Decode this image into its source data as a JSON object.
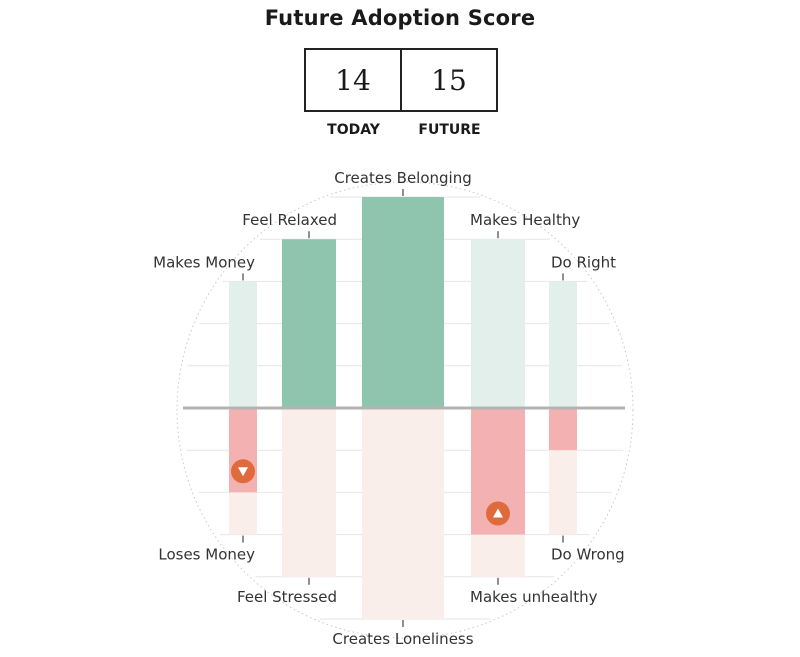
{
  "title": "Future Adoption Score",
  "scores": {
    "today": {
      "value": "14",
      "label": "TODAY"
    },
    "future": {
      "value": "15",
      "label": "FUTURE"
    }
  },
  "chart_data": {
    "type": "bar",
    "subtype": "diverging-bar",
    "ylim": [
      -5,
      5
    ],
    "grid": true,
    "categories": [
      {
        "positive_label": "Makes Money",
        "negative_label": "Loses Money",
        "max": 3,
        "positive": 0,
        "negative": -2,
        "marker": "down"
      },
      {
        "positive_label": "Feel Relaxed",
        "negative_label": "Feel Stressed",
        "max": 4,
        "positive": 4,
        "negative": 0,
        "marker": null
      },
      {
        "positive_label": "Creates Belonging",
        "negative_label": "Creates Loneliness",
        "max": 5,
        "positive": 5,
        "negative": 0,
        "marker": null
      },
      {
        "positive_label": "Makes Healthy",
        "negative_label": "Makes unhealthy",
        "max": 4,
        "positive": 0,
        "negative": -3,
        "marker": "up"
      },
      {
        "positive_label": "Do Right",
        "negative_label": "Do Wrong",
        "max": 3,
        "positive": 0,
        "negative": -1,
        "marker": null
      }
    ],
    "colors": {
      "positive": "#8fc4ae",
      "positive_track": "#e3efeb",
      "negative": "#f4b1b2",
      "negative_track": "#faeeea",
      "marker": "#df6a3c",
      "axis": "#b3b3b3",
      "grid": "#e6e6e6"
    }
  }
}
